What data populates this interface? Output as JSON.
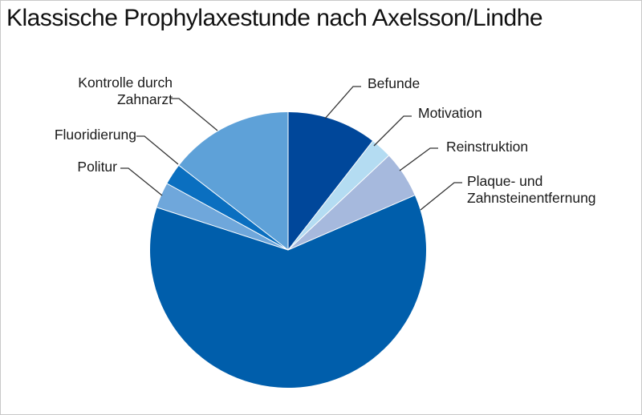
{
  "chart_data": {
    "type": "pie",
    "title": "Klassische Prophylaxestunde nach Axelsson/Lindhe",
    "start_angle_deg": 0,
    "direction": "clockwise",
    "slices": [
      {
        "label_lines": [
          "Befunde"
        ],
        "value": 10.5,
        "color": "#00479a"
      },
      {
        "label_lines": [
          "Motivation"
        ],
        "value": 2.5,
        "color": "#b4dcf2"
      },
      {
        "label_lines": [
          "Reinstruktion"
        ],
        "value": 5.5,
        "color": "#a6b9dd"
      },
      {
        "label_lines": [
          "Plaque- und",
          "Zahnsteinentfernung"
        ],
        "value": 61.5,
        "color": "#005eab"
      },
      {
        "label_lines": [
          "Politur"
        ],
        "value": 3.0,
        "color": "#6fa7db"
      },
      {
        "label_lines": [
          "Fluoridierung"
        ],
        "value": 2.5,
        "color": "#0a6fc0"
      },
      {
        "label_lines": [
          "Kontrolle durch",
          "Zahnarzt"
        ],
        "value": 14.5,
        "color": "#5ea1d8"
      }
    ]
  }
}
